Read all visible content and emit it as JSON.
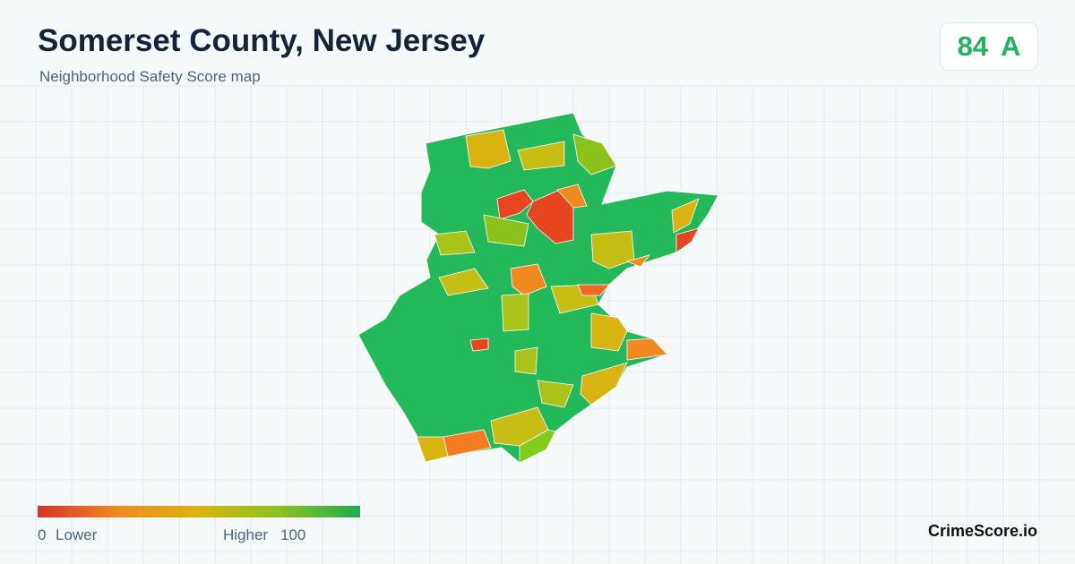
{
  "header": {
    "title": "Somerset County, New Jersey",
    "subtitle": "Neighborhood Safety Score map"
  },
  "score": {
    "value": "84",
    "grade": "A"
  },
  "legend": {
    "min": "0",
    "min_label": "Lower",
    "max_label": "Higher",
    "max": "100"
  },
  "brand": "CrimeScore.io"
}
